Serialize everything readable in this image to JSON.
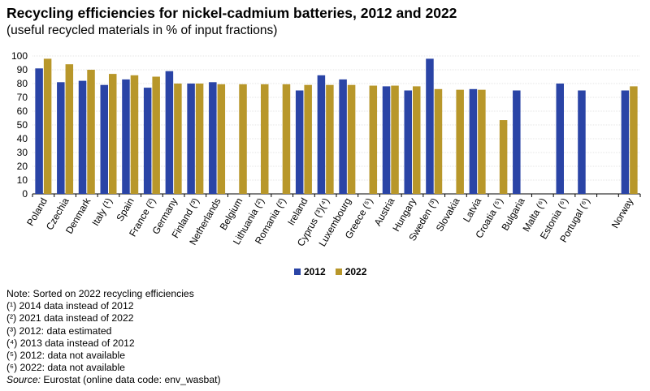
{
  "chart_data": {
    "type": "bar",
    "title": "Recycling efficiencies for nickel-cadmium batteries, 2012 and 2022",
    "subtitle": "(useful recycled materials in % of input fractions)",
    "ylim": [
      0,
      100
    ],
    "yticks": [
      0,
      10,
      20,
      30,
      40,
      50,
      60,
      70,
      80,
      90,
      100
    ],
    "categories": [
      "Poland",
      "Czechia",
      "Denmark",
      "Italy (¹)",
      "Spain",
      "France (²)",
      "Germany",
      "Finland (³)",
      "Netherlands",
      "Belgium",
      "Lithuania (²)",
      "Romania (²)",
      "Ireland",
      "Cyprus (³)(⁴)",
      "Luxembourg",
      "Greece (⁵)",
      "Austria",
      "Hungary",
      "Sweden (³)",
      "Slovakia",
      "Latvia",
      "Croatia (⁵)",
      "Bulgaria",
      "Malta (⁶)",
      "Estonia (⁶)",
      "Portugal (⁶)",
      "",
      "Norway"
    ],
    "series": [
      {
        "name": "2012",
        "color": "#2a44a6",
        "values": [
          91,
          81,
          82,
          79,
          83,
          77,
          89,
          80,
          81,
          null,
          null,
          null,
          75,
          86,
          83,
          null,
          78,
          75,
          98,
          null,
          76,
          null,
          75,
          null,
          80,
          75,
          null,
          75
        ]
      },
      {
        "name": "2022",
        "color": "#b8972a",
        "values": [
          98,
          94,
          90,
          87,
          86,
          85,
          80,
          80,
          79.5,
          79.5,
          79.5,
          79.5,
          79,
          79,
          79,
          78.5,
          78.5,
          78,
          76,
          75.5,
          75.5,
          53.5,
          null,
          null,
          null,
          null,
          null,
          78
        ]
      }
    ]
  },
  "legend": {
    "items": [
      {
        "label": "2012",
        "color": "#2a44a6"
      },
      {
        "label": "2022",
        "color": "#b8972a"
      }
    ]
  },
  "notes": {
    "line1": "Note: Sorted on 2022 recycling efficiencies",
    "line2": "(¹) 2014 data instead of 2012",
    "line3": "(²) 2021 data instead of 2022",
    "line4": "(³) 2012: data estimated",
    "line5": "(⁴) 2013 data instead of 2012",
    "line6": "(⁵) 2012: data not available",
    "line7": "(⁶) 2022: data not available",
    "source_label": "Source:",
    "source_text": " Eurostat (online data code: env_wasbat)"
  }
}
